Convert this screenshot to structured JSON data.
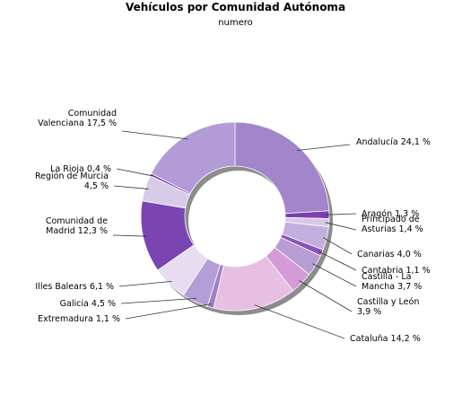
{
  "chart_data": {
    "type": "pie",
    "title": "Vehículos por Comunidad Autónoma",
    "subtitle": "numero",
    "slices": [
      {
        "label": "Andalucía",
        "value": 24.1,
        "label_lines": [
          "Andalucía 24,1 %"
        ],
        "color": "#a385cb"
      },
      {
        "label": "Aragón",
        "value": 1.3,
        "label_lines": [
          "Aragón 1,3 %"
        ],
        "color": "#7b3fb1"
      },
      {
        "label": "Principado de Asturias",
        "value": 1.4,
        "label_lines": [
          "Principado de",
          "Asturias 1,4 %"
        ],
        "color": "#d8c8e6"
      },
      {
        "label": "Canarias",
        "value": 4.0,
        "label_lines": [
          "Canarias 4,0 %"
        ],
        "color": "#c3afde"
      },
      {
        "label": "Cantabria",
        "value": 1.1,
        "label_lines": [
          "Cantabria 1,1 %"
        ],
        "color": "#8a52bb"
      },
      {
        "label": "Castilla - La Mancha",
        "value": 3.7,
        "label_lines": [
          "Castilla - La",
          "Mancha 3,7 %"
        ],
        "color": "#b89cd4"
      },
      {
        "label": "Castilla y León",
        "value": 3.9,
        "label_lines": [
          "Castilla y León",
          "3,9 %"
        ],
        "color": "#d49bd8"
      },
      {
        "label": "Cataluña",
        "value": 14.2,
        "label_lines": [
          "Cataluña 14,2 %"
        ],
        "color": "#e6bfe2"
      },
      {
        "label": "Extremadura",
        "value": 1.1,
        "label_lines": [
          "Extremadura 1,1 %"
        ],
        "color": "#a07fc5"
      },
      {
        "label": "Galicia",
        "value": 4.5,
        "label_lines": [
          "Galicia 4,5 %"
        ],
        "color": "#b49ed8"
      },
      {
        "label": "Illes Balears",
        "value": 6.1,
        "label_lines": [
          "Illes Balears 6,1 %"
        ],
        "color": "#e7dcf0"
      },
      {
        "label": "Comunidad de Madrid",
        "value": 12.3,
        "label_lines": [
          "Comunidad de",
          "Madrid 12,3 %"
        ],
        "color": "#7a45b0"
      },
      {
        "label": "Región de Murcia",
        "value": 4.5,
        "label_lines": [
          "Región de Murcia",
          "4,5 %"
        ],
        "color": "#d8cbe8"
      },
      {
        "label": "La Rioja",
        "value": 0.4,
        "label_lines": [
          "La Rioja 0,4 %"
        ],
        "color": "#6c3aa0"
      },
      {
        "label": "Comunidad Valenciana",
        "value": 17.5,
        "label_lines": [
          "Comunidad",
          "Valenciana 17,5 %"
        ],
        "color": "#b29bd6"
      }
    ]
  }
}
